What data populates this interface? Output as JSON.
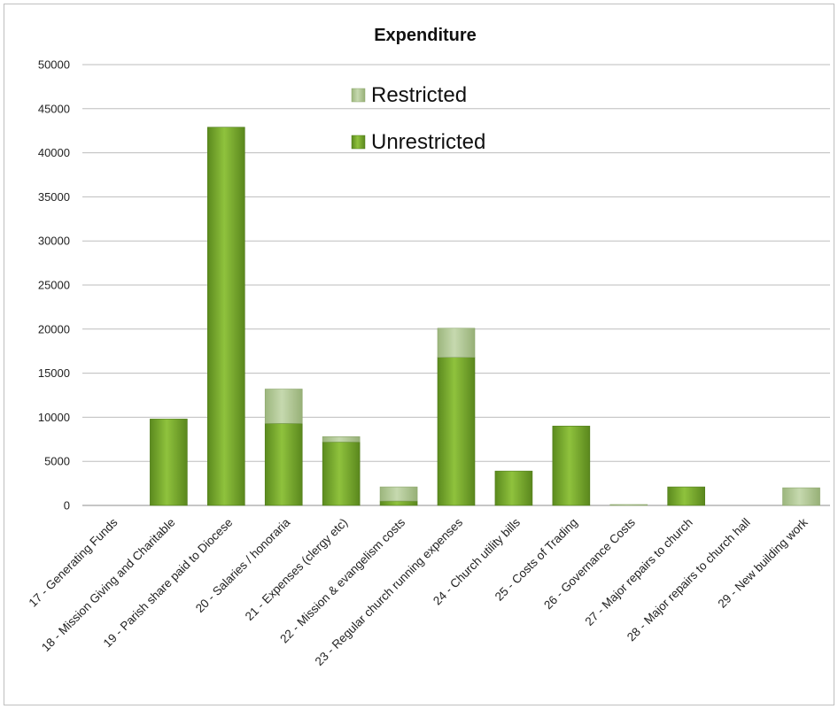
{
  "chart_data": {
    "type": "bar",
    "stacked": true,
    "title": "Expenditure",
    "xlabel": "",
    "ylabel": "",
    "ylim": [
      0,
      50000
    ],
    "yticks": [
      0,
      5000,
      10000,
      15000,
      20000,
      25000,
      30000,
      35000,
      40000,
      45000,
      50000
    ],
    "grid": true,
    "legend_position": "top-center",
    "categories": [
      "17 - Generating Funds",
      "18 - Mission Giving and Charitable",
      "19 - Parish share paid to Diocese",
      "20 - Salaries / honoraria",
      "21 - Expenses (clergy etc)",
      "22 - Mission & evangelism costs",
      "23 - Regular church running expenses",
      "24 - Church utility bills",
      "25 - Costs of Trading",
      "26 - Governance Costs",
      "27 - Major repairs to church",
      "28 - Major repairs to church hall",
      "29 - New building work"
    ],
    "series": [
      {
        "name": "Unrestricted",
        "color": "#6f9e2a",
        "values": [
          0,
          9800,
          42900,
          9300,
          7200,
          500,
          16800,
          3900,
          9000,
          0,
          2100,
          0,
          0
        ]
      },
      {
        "name": "Restricted",
        "color": "#a9c389",
        "values": [
          0,
          0,
          0,
          3900,
          600,
          1600,
          3300,
          0,
          0,
          100,
          0,
          0,
          2000
        ]
      }
    ]
  }
}
